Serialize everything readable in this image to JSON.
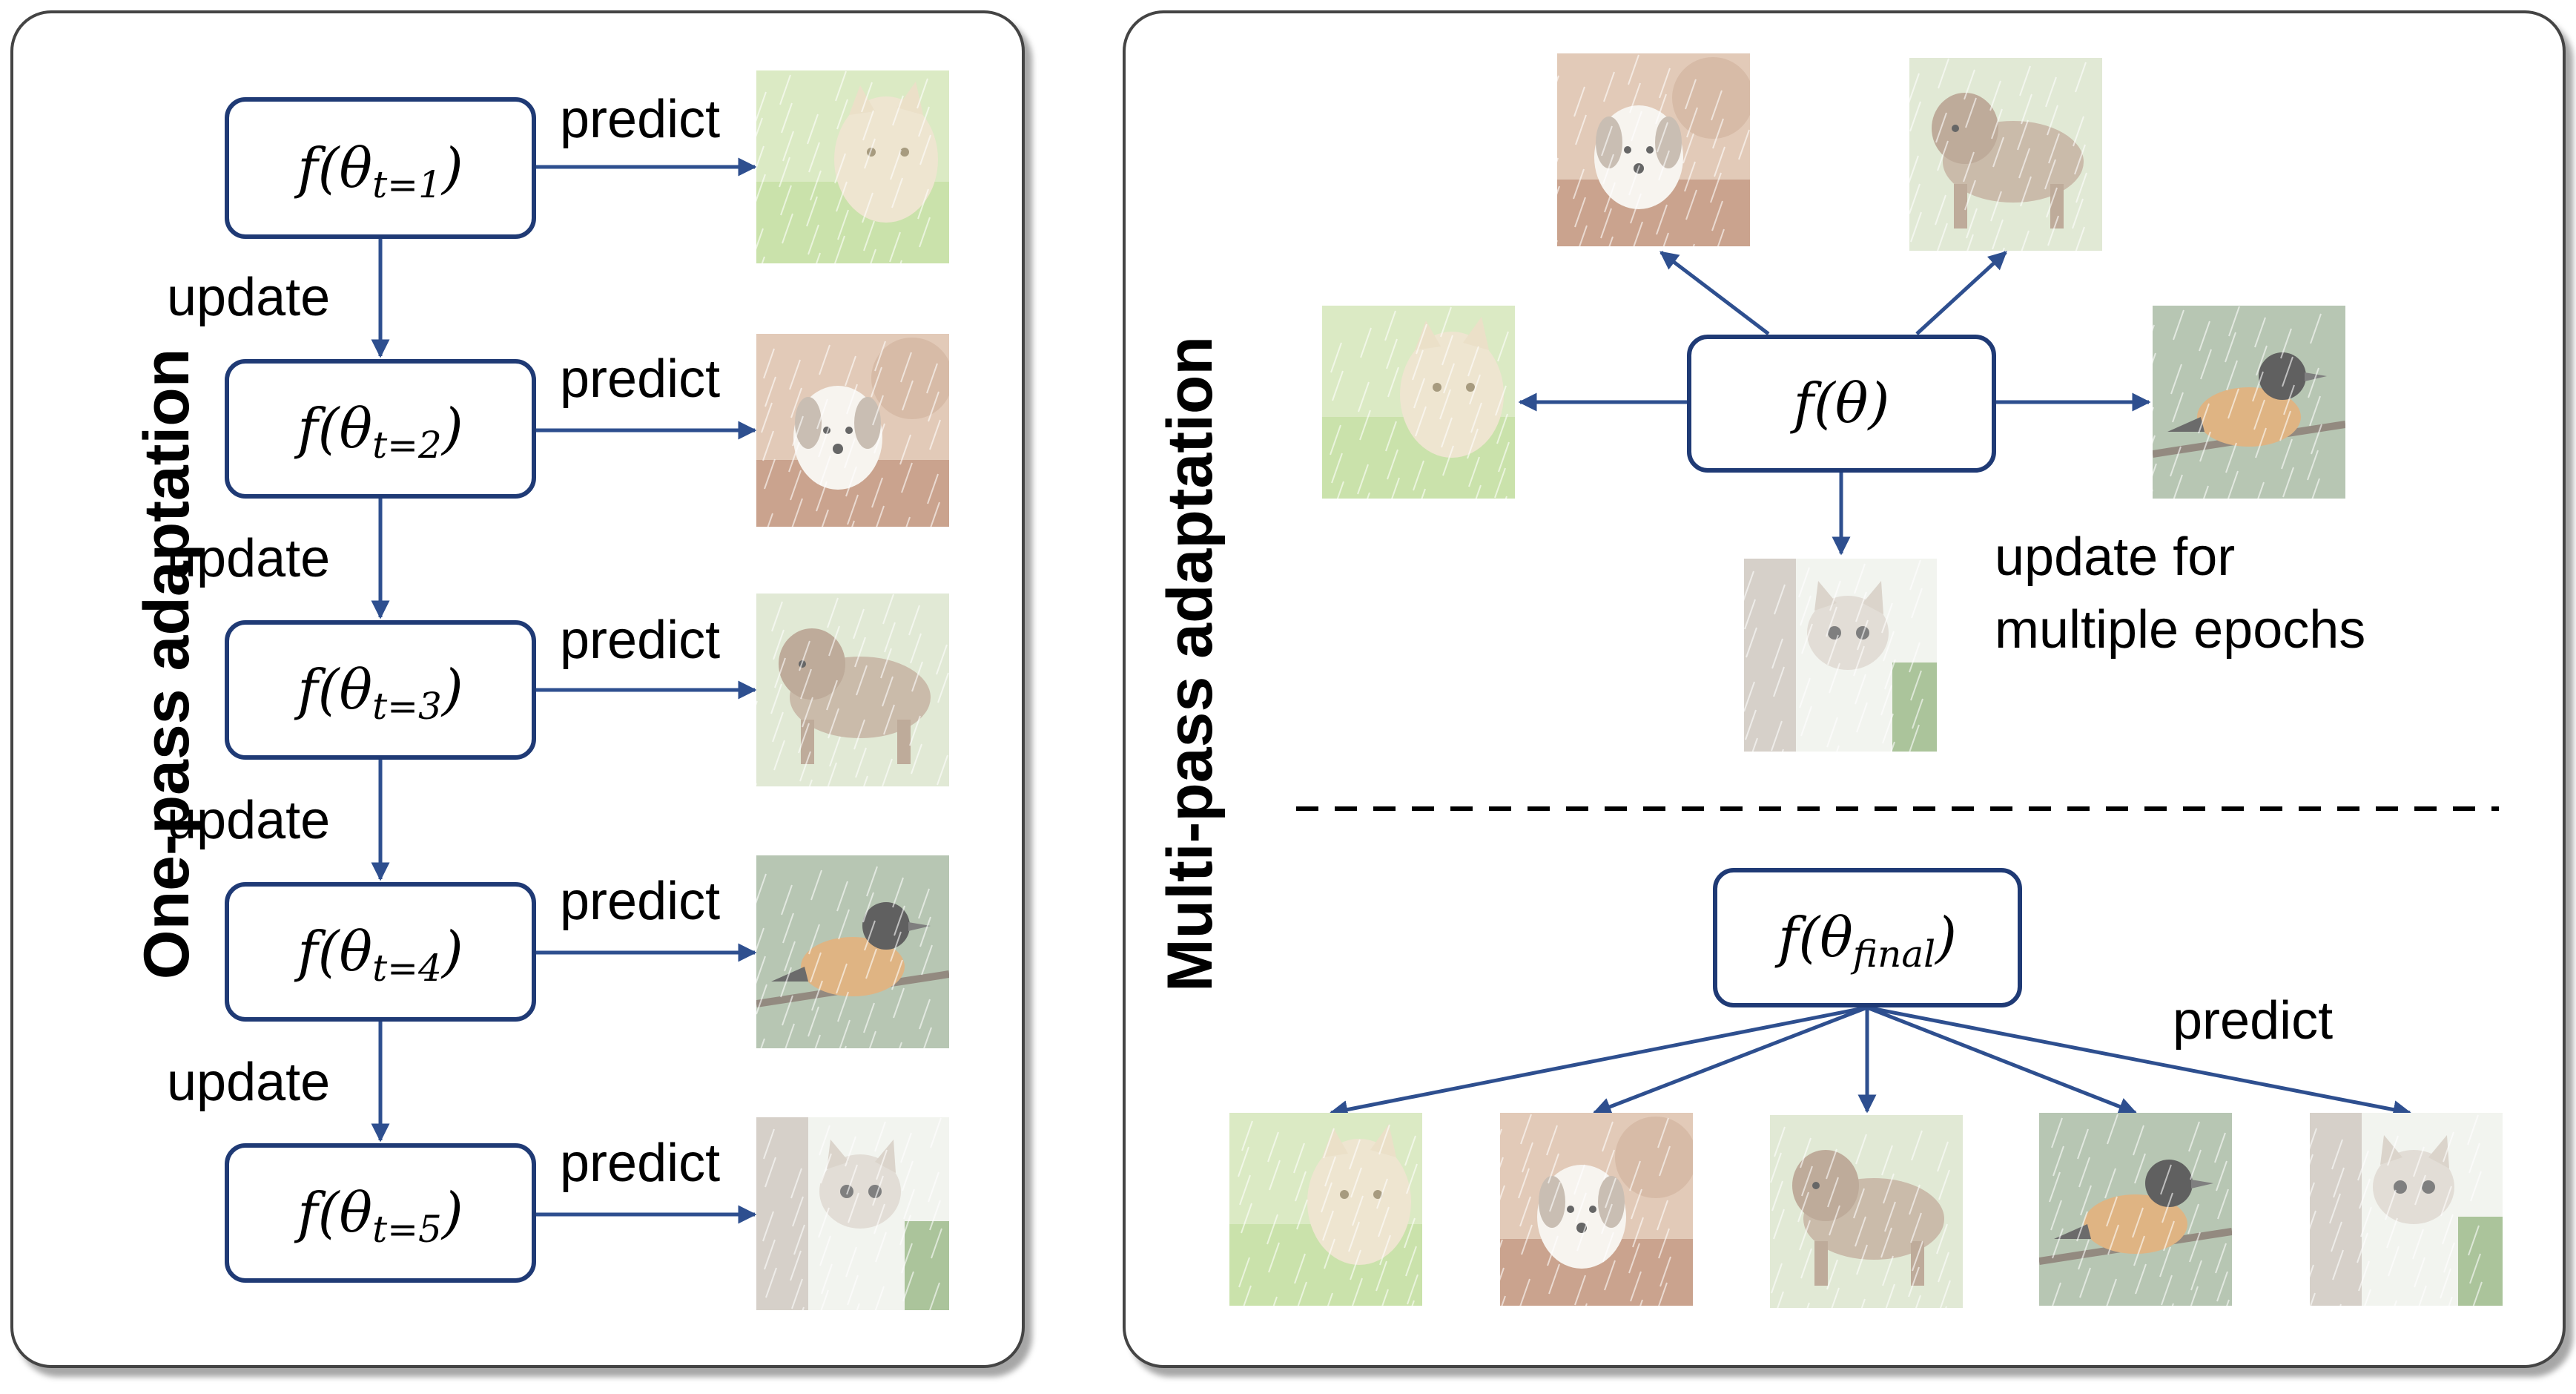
{
  "colors": {
    "frame": "#444444",
    "box_border": "#1f3a75",
    "arrow": "#2e4f8f",
    "text": "#000000"
  },
  "one_pass": {
    "title": "One-pass adaptation",
    "models": [
      {
        "base": "f(θ",
        "sub": "t=1",
        "close": ")"
      },
      {
        "base": "f(θ",
        "sub": "t=2",
        "close": ")"
      },
      {
        "base": "f(θ",
        "sub": "t=3",
        "close": ")"
      },
      {
        "base": "f(θ",
        "sub": "t=4",
        "close": ")"
      },
      {
        "base": "f(θ",
        "sub": "t=5",
        "close": ")"
      }
    ],
    "update_label": "update",
    "predict_label": "predict",
    "images": [
      "cat",
      "dog",
      "puppy",
      "bird",
      "kitten"
    ]
  },
  "multi_pass": {
    "title": "Multi-pass adaptation",
    "model": {
      "text": "f(θ)"
    },
    "update_text_line1": "update for",
    "update_text_line2": "multiple epochs",
    "final_model": {
      "base": "f(θ",
      "sub": "final",
      "close": ")"
    },
    "predict_label": "predict",
    "top_images": [
      "dog",
      "puppy",
      "cat",
      "bird",
      "kitten"
    ],
    "bottom_images": [
      "cat",
      "dog",
      "puppy",
      "bird",
      "kitten"
    ]
  }
}
